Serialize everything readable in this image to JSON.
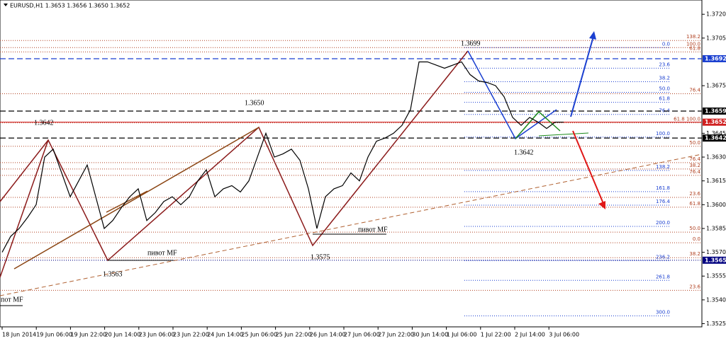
{
  "chart_data": {
    "type": "line",
    "title": "EURUSD,H1 1.3653 1.3656 1.3650 1.3652",
    "x_tick_labels": [
      "18 Jun 2014",
      "19 Jun 06:00",
      "19 Jun 22:00",
      "20 Jun 14:00",
      "23 Jun 06:00",
      "23 Jun 22:00",
      "24 Jun 14:00",
      "25 Jun 06:00",
      "25 Jun 22:00",
      "26 Jun 14:00",
      "27 Jun 06:00",
      "27 Jun 22:00",
      "30 Jun 14:00",
      "1 Jul 06:00",
      "1 Jul 22:00",
      "2 Jul 14:00",
      "3 Jul 06:00"
    ],
    "series": [
      {
        "name": "EURUSD",
        "color": "#000000",
        "values": [
          1.357,
          1.358,
          1.3585,
          1.3592,
          1.36,
          1.363,
          1.3635,
          1.362,
          1.3605,
          1.3615,
          1.3625,
          1.3605,
          1.3585,
          1.359,
          1.3598,
          1.3605,
          1.361,
          1.359,
          1.3595,
          1.3602,
          1.3605,
          1.36,
          1.3605,
          1.3615,
          1.3622,
          1.3605,
          1.361,
          1.3612,
          1.3608,
          1.3615,
          1.363,
          1.3645,
          1.363,
          1.3632,
          1.3635,
          1.3628,
          1.361,
          1.3585,
          1.3605,
          1.361,
          1.3612,
          1.362,
          1.3615,
          1.363,
          1.364,
          1.3642,
          1.3645,
          1.365,
          1.366,
          1.369,
          1.369,
          1.3688,
          1.3686,
          1.3688,
          1.369,
          1.3682,
          1.3678,
          1.3677,
          1.3675,
          1.3668,
          1.3655,
          1.365,
          1.3655,
          1.3652,
          1.3648,
          1.3652,
          1.3652
        ]
      }
    ],
    "ylim": [
      1.3523,
      1.3729
    ],
    "yticks": [
      {
        "value": 1.372,
        "label": "1.3720"
      },
      {
        "value": 1.3705,
        "label": "1.3705"
      },
      {
        "value": 1.3675,
        "label": "1.3675"
      },
      {
        "value": 1.3645,
        "label": "1.3645"
      },
      {
        "value": 1.363,
        "label": "1.3630"
      },
      {
        "value": 1.3615,
        "label": "1.3615"
      },
      {
        "value": 1.36,
        "label": "1.3600"
      },
      {
        "value": 1.3585,
        "label": "1.3585"
      },
      {
        "value": 1.357,
        "label": "1.3570"
      },
      {
        "value": 1.3555,
        "label": "1.3555"
      },
      {
        "value": 1.354,
        "label": "1.3540"
      },
      {
        "value": 1.3525,
        "label": "1.3525"
      }
    ],
    "price_levels": [
      {
        "value": 1.3692,
        "label": "1.3692",
        "color": "#1a3fd0"
      },
      {
        "value": 1.3659,
        "label": "1.3659",
        "color": "#000000"
      },
      {
        "value": 1.3652,
        "label": "1.3652",
        "color": "#d02020"
      },
      {
        "value": 1.3642,
        "label": "1.3642",
        "color": "#000000"
      },
      {
        "value": 1.3565,
        "label": "1.3565",
        "color": "#000080"
      }
    ],
    "fib_levels": [
      {
        "value": 1.37035,
        "label": "138.2",
        "color": "#b04020"
      },
      {
        "value": 1.3699,
        "label": "100.0",
        "color": "#b04020"
      },
      {
        "value": 1.36963,
        "label": "61.8",
        "color": "#b04020"
      },
      {
        "value": 1.36699,
        "label": "76.4",
        "color": "#b04020"
      },
      {
        "value": 1.36516,
        "label": "61.8 100.0",
        "color": "#b04020"
      },
      {
        "value": 1.36368,
        "label": "50.0",
        "color": "#b04020"
      },
      {
        "value": 1.36265,
        "label": "76.4",
        "color": "#b04020"
      },
      {
        "value": 1.36225,
        "label": "38.2",
        "color": "#b04020"
      },
      {
        "value": 1.36185,
        "label": "76.4",
        "color": "#b04020"
      },
      {
        "value": 1.36046,
        "label": "23.6",
        "color": "#b04020"
      },
      {
        "value": 1.35984,
        "label": "61.8",
        "color": "#b04020"
      },
      {
        "value": 1.35827,
        "label": "50.0",
        "color": "#b04020"
      },
      {
        "value": 1.35666,
        "label": "38.2",
        "color": "#b04020"
      },
      {
        "value": 1.3546,
        "label": "23.6",
        "color": "#b04020"
      },
      {
        "value": 1.3699,
        "label": "0.0",
        "color": "#1a3fd0"
      },
      {
        "value": 1.3686,
        "label": "23.6",
        "color": "#1a3fd0"
      },
      {
        "value": 1.36775,
        "label": "38.2",
        "color": "#1a3fd0"
      },
      {
        "value": 1.36708,
        "label": "50.0",
        "color": "#1a3fd0"
      },
      {
        "value": 1.36645,
        "label": "61.8",
        "color": "#1a3fd0"
      },
      {
        "value": 1.36569,
        "label": "76.4",
        "color": "#1a3fd0"
      },
      {
        "value": 1.36426,
        "label": "100.0",
        "color": "#1a3fd0"
      },
      {
        "value": 1.36216,
        "label": "138.2",
        "color": "#1a3fd0"
      },
      {
        "value": 1.36082,
        "label": "161.8",
        "color": "#1a3fd0"
      },
      {
        "value": 1.35997,
        "label": "176.4",
        "color": "#1a3fd0"
      },
      {
        "value": 1.35863,
        "label": "200.0",
        "color": "#1a3fd0"
      },
      {
        "value": 1.3576,
        "label": "0.0",
        "color": "#b04020"
      },
      {
        "value": 1.35648,
        "label": "236.2",
        "color": "#1a3fd0"
      },
      {
        "value": 1.35523,
        "label": "261.8",
        "color": "#1a3fd0"
      },
      {
        "value": 1.35299,
        "label": "300.0",
        "color": "#1a3fd0"
      }
    ],
    "annotations": [
      "1.3699",
      "1.3650",
      "1.3642",
      "1.3563",
      "1.3575",
      "1.3642",
      "пивот MF",
      "пивот MF",
      "пот MF"
    ]
  }
}
